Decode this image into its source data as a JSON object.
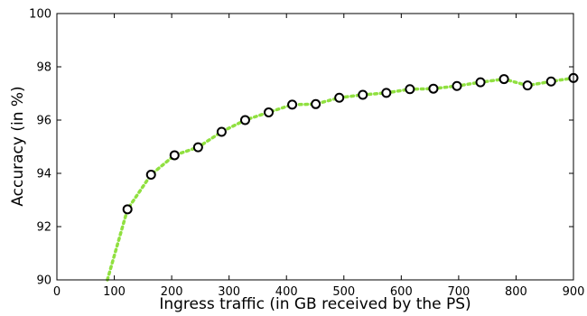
{
  "chart_data": {
    "type": "line",
    "title": "",
    "xlabel": "Ingress traffic (in GB received by the PS)",
    "ylabel": "Accuracy (in %)",
    "xlim": [
      0,
      900
    ],
    "ylim": [
      90,
      100
    ],
    "xticks": [
      0,
      100,
      200,
      300,
      400,
      500,
      600,
      700,
      800,
      900
    ],
    "yticks": [
      90,
      92,
      94,
      96,
      98,
      100
    ],
    "grid": false,
    "line_color": "#90e040",
    "line_style": "dotted",
    "marker": "open-circle",
    "marker_color": "#000000",
    "series": [
      {
        "line_x": [
          88,
          123,
          164,
          205,
          246,
          287,
          328,
          369,
          410,
          451,
          492,
          533,
          574,
          615,
          656,
          697,
          738,
          779,
          820,
          861,
          900
        ],
        "line_y": [
          90.0,
          92.65,
          93.95,
          94.68,
          94.98,
          95.56,
          96.0,
          96.29,
          96.58,
          96.6,
          96.84,
          96.95,
          97.02,
          97.16,
          97.18,
          97.28,
          97.42,
          97.54,
          97.3,
          97.45,
          97.58
        ],
        "x": [
          123,
          164,
          205,
          246,
          287,
          328,
          369,
          410,
          451,
          492,
          533,
          574,
          615,
          656,
          697,
          738,
          779,
          820,
          861,
          900
        ],
        "y": [
          92.65,
          93.95,
          94.68,
          94.98,
          95.56,
          96.0,
          96.29,
          96.58,
          96.6,
          96.84,
          96.95,
          97.02,
          97.16,
          97.18,
          97.28,
          97.42,
          97.54,
          97.3,
          97.45,
          97.58
        ]
      }
    ]
  }
}
